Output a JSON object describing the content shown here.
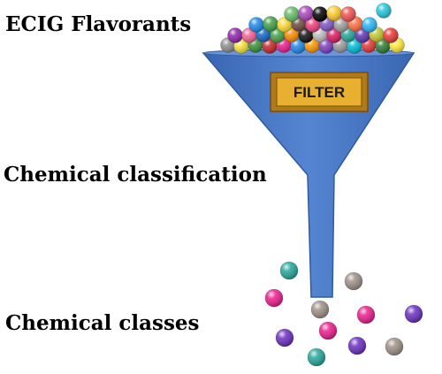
{
  "labels": {
    "top": "ECIG Flavorants",
    "middle": "Chemical classification",
    "bottom": "Chemical classes"
  },
  "filter": {
    "label": "FILTER"
  },
  "colors": {
    "funnel": "#4a78c2",
    "funnel_edge": "#2f5aa0",
    "filter_box": "#e0a82a",
    "filter_border": "#8a5a10"
  },
  "balls_top": [
    {
      "color": "#8e8e8e"
    },
    {
      "color": "#f5e23a"
    },
    {
      "color": "#3a8f3a"
    },
    {
      "color": "#c62828"
    },
    {
      "color": "#e91e8c"
    },
    {
      "color": "#1e88e5"
    },
    {
      "color": "#ff9800"
    },
    {
      "color": "#7b3fbf"
    },
    {
      "color": "#9c9c9c"
    },
    {
      "color": "#00bcd4"
    },
    {
      "color": "#e53935"
    },
    {
      "color": "#2e7d32"
    },
    {
      "color": "#ffeb3b"
    },
    {
      "color": "#8e24aa"
    },
    {
      "color": "#f06292"
    },
    {
      "color": "#1565c0"
    },
    {
      "color": "#43a047"
    },
    {
      "color": "#fb8c00"
    },
    {
      "color": "#111111"
    },
    {
      "color": "#bdbdbd"
    },
    {
      "color": "#d81b60"
    },
    {
      "color": "#26a69a"
    },
    {
      "color": "#5e35b1"
    },
    {
      "color": "#c0ca33"
    },
    {
      "color": "#e53935"
    },
    {
      "color": "#1e88e5"
    },
    {
      "color": "#43a047"
    },
    {
      "color": "#fdd835"
    },
    {
      "color": "#6d4c41"
    },
    {
      "color": "#ec407a"
    },
    {
      "color": "#7e57c2"
    },
    {
      "color": "#9e9e9e"
    },
    {
      "color": "#ff7043"
    },
    {
      "color": "#29b6f6"
    },
    {
      "color": "#66bb6a"
    },
    {
      "color": "#ab47bc"
    },
    {
      "color": "#000000"
    },
    {
      "color": "#ffca28"
    },
    {
      "color": "#ef5350"
    },
    {
      "color": "#26c6da"
    }
  ],
  "balls_bottom": [
    {
      "color": "#26a69a"
    },
    {
      "color": "#9e8e86"
    },
    {
      "color": "#e91e8c"
    },
    {
      "color": "#9e8e86"
    },
    {
      "color": "#e91e8c"
    },
    {
      "color": "#6a2fbf"
    },
    {
      "color": "#6a2fbf"
    },
    {
      "color": "#e91e8c"
    },
    {
      "color": "#9e8e86"
    },
    {
      "color": "#6a2fbf"
    },
    {
      "color": "#26a69a"
    }
  ]
}
